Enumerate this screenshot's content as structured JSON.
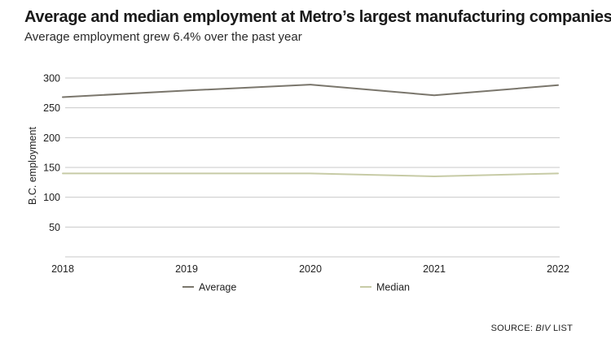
{
  "chart_data": {
    "type": "line",
    "title": "Average and median employment at Metro’s largest manufacturing companies",
    "subtitle": "Average employment grew 6.4% over the past year",
    "ylabel": "B.C. employment",
    "xlabel": "",
    "x": [
      "2018",
      "2019",
      "2020",
      "2021",
      "2022"
    ],
    "yticks": [
      50,
      100,
      150,
      200,
      250,
      300
    ],
    "ylim": [
      0,
      300
    ],
    "grid": true,
    "legend_position": "bottom-center",
    "series": [
      {
        "name": "Average",
        "color": "#7a766c",
        "values": [
          268,
          279,
          289,
          271,
          288
        ]
      },
      {
        "name": "Median",
        "color": "#c7cba6",
        "values": [
          140,
          140,
          140,
          135,
          140
        ]
      }
    ]
  },
  "source": {
    "prefix": "SOURCE: ",
    "name": "BIV",
    "suffix": " LIST"
  }
}
